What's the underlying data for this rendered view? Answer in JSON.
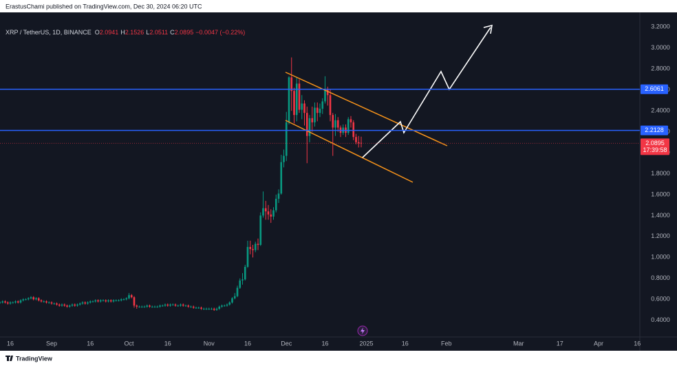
{
  "header": {
    "text": "ErastusChami published on TradingView.com, Dec 30, 2024 06:20 UTC"
  },
  "footer": {
    "text": "TradingView"
  },
  "chart_data": {
    "type": "candlestick",
    "legend": {
      "symbol": "XRP / TetherUS, 1D, BINANCE",
      "labels": [
        "O",
        "H",
        "L",
        "C"
      ],
      "change_label": "−0.0047 (−0.22%)"
    },
    "up_color": "#089981",
    "down_color": "#f23645",
    "x": [
      11,
      12,
      13,
      14,
      15,
      16,
      17,
      18,
      19,
      20,
      21,
      22,
      23,
      24,
      25,
      26,
      27,
      28,
      29,
      30,
      31,
      32,
      33,
      34,
      35,
      36,
      37,
      38,
      39,
      40,
      41,
      42,
      43,
      44,
      45,
      46,
      47,
      48,
      49,
      50,
      51,
      52,
      53,
      54,
      55,
      56,
      57,
      58,
      59,
      60,
      61,
      62,
      63,
      64,
      65,
      66,
      67,
      68,
      69,
      70,
      71,
      72,
      73,
      74,
      75,
      76,
      77,
      78,
      79,
      80,
      81,
      82,
      83,
      84,
      85,
      86,
      87,
      88,
      89,
      90,
      91,
      92,
      93,
      94,
      95,
      96,
      97,
      98,
      99,
      100,
      101,
      102,
      103,
      104,
      105,
      106,
      107,
      108,
      109,
      110,
      111,
      112,
      113,
      114,
      115,
      116,
      117,
      118,
      119,
      120,
      121,
      122,
      123,
      124,
      125,
      126,
      127,
      128,
      129,
      130,
      131,
      132,
      133,
      134,
      135,
      136,
      137,
      138,
      139,
      140,
      141,
      142,
      143,
      144,
      145,
      146,
      147,
      148,
      149,
      150,
      151
    ],
    "open": [
      0.57,
      0.57,
      0.58,
      0.57,
      0.56,
      0.57,
      0.57,
      0.58,
      0.57,
      0.59,
      0.6,
      0.6,
      0.61,
      0.62,
      0.6,
      0.61,
      0.59,
      0.58,
      0.58,
      0.57,
      0.57,
      0.56,
      0.56,
      0.55,
      0.54,
      0.55,
      0.54,
      0.53,
      0.54,
      0.55,
      0.54,
      0.55,
      0.56,
      0.57,
      0.56,
      0.57,
      0.58,
      0.58,
      0.59,
      0.58,
      0.59,
      0.59,
      0.58,
      0.59,
      0.58,
      0.59,
      0.59,
      0.59,
      0.6,
      0.6,
      0.61,
      0.64,
      0.62,
      0.54,
      0.53,
      0.53,
      0.53,
      0.53,
      0.54,
      0.53,
      0.53,
      0.53,
      0.53,
      0.54,
      0.54,
      0.55,
      0.54,
      0.55,
      0.55,
      0.54,
      0.54,
      0.55,
      0.54,
      0.54,
      0.53,
      0.53,
      0.52,
      0.52,
      0.52,
      0.51,
      0.51,
      0.51,
      0.51,
      0.51,
      0.5,
      0.51,
      0.53,
      0.54,
      0.54,
      0.55,
      0.57,
      0.61,
      0.63,
      0.71,
      0.78,
      0.79,
      0.91,
      1.1,
      1.08,
      1.07,
      1.13,
      1.12,
      1.4,
      1.47,
      1.44,
      1.41,
      1.39,
      1.45,
      1.56,
      1.61,
      1.91,
      1.97,
      2.29,
      2.72,
      2.59,
      2.36,
      2.66,
      2.41,
      2.47,
      2.38,
      2.16,
      2.33,
      2.29,
      2.43,
      2.38,
      2.42,
      2.49,
      2.6,
      2.55,
      2.36,
      2.24,
      2.31,
      2.24,
      2.19,
      2.24,
      2.19,
      2.32,
      2.29,
      2.15,
      2.1,
      2.0941
    ],
    "high": [
      0.58,
      0.59,
      0.59,
      0.58,
      0.58,
      0.58,
      0.59,
      0.59,
      0.6,
      0.61,
      0.61,
      0.62,
      0.63,
      0.63,
      0.62,
      0.62,
      0.6,
      0.59,
      0.59,
      0.58,
      0.58,
      0.57,
      0.57,
      0.56,
      0.56,
      0.56,
      0.55,
      0.55,
      0.56,
      0.56,
      0.56,
      0.57,
      0.58,
      0.58,
      0.58,
      0.59,
      0.59,
      0.6,
      0.6,
      0.6,
      0.6,
      0.6,
      0.6,
      0.6,
      0.6,
      0.6,
      0.6,
      0.61,
      0.61,
      0.62,
      0.66,
      0.65,
      0.63,
      0.55,
      0.54,
      0.54,
      0.54,
      0.55,
      0.55,
      0.54,
      0.54,
      0.54,
      0.55,
      0.55,
      0.56,
      0.56,
      0.56,
      0.56,
      0.56,
      0.55,
      0.56,
      0.56,
      0.55,
      0.55,
      0.54,
      0.54,
      0.53,
      0.53,
      0.53,
      0.52,
      0.52,
      0.52,
      0.52,
      0.52,
      0.52,
      0.54,
      0.55,
      0.55,
      0.56,
      0.58,
      0.62,
      0.66,
      0.73,
      0.8,
      0.85,
      0.93,
      1.16,
      1.16,
      1.12,
      1.15,
      1.18,
      1.43,
      1.63,
      1.54,
      1.5,
      1.46,
      1.48,
      1.6,
      1.65,
      1.98,
      2.03,
      2.39,
      2.73,
      2.91,
      2.62,
      2.72,
      2.7,
      2.55,
      2.5,
      2.44,
      2.36,
      2.44,
      2.48,
      2.48,
      2.47,
      2.52,
      2.73,
      2.63,
      2.61,
      2.38,
      2.37,
      2.34,
      2.26,
      2.27,
      2.27,
      2.34,
      2.35,
      2.31,
      2.18,
      2.16,
      2.1526
    ],
    "low": [
      0.56,
      0.56,
      0.56,
      0.55,
      0.55,
      0.56,
      0.56,
      0.56,
      0.56,
      0.58,
      0.59,
      0.59,
      0.6,
      0.59,
      0.59,
      0.58,
      0.57,
      0.57,
      0.56,
      0.56,
      0.55,
      0.55,
      0.54,
      0.53,
      0.53,
      0.53,
      0.52,
      0.52,
      0.53,
      0.53,
      0.53,
      0.54,
      0.55,
      0.55,
      0.55,
      0.56,
      0.57,
      0.57,
      0.57,
      0.57,
      0.58,
      0.57,
      0.57,
      0.57,
      0.57,
      0.58,
      0.58,
      0.58,
      0.59,
      0.59,
      0.6,
      0.61,
      0.52,
      0.51,
      0.52,
      0.52,
      0.52,
      0.52,
      0.52,
      0.52,
      0.52,
      0.52,
      0.52,
      0.53,
      0.53,
      0.53,
      0.53,
      0.54,
      0.53,
      0.53,
      0.53,
      0.53,
      0.53,
      0.52,
      0.52,
      0.51,
      0.51,
      0.51,
      0.5,
      0.5,
      0.5,
      0.5,
      0.5,
      0.49,
      0.49,
      0.5,
      0.52,
      0.53,
      0.53,
      0.54,
      0.56,
      0.6,
      0.62,
      0.7,
      0.74,
      0.78,
      0.9,
      1.03,
      1.0,
      1.05,
      1.07,
      1.11,
      1.38,
      1.36,
      1.36,
      1.33,
      1.36,
      1.43,
      1.52,
      1.6,
      1.86,
      1.92,
      2.27,
      2.4,
      2.28,
      2.3,
      2.38,
      2.32,
      2.26,
      1.9,
      2.1,
      2.2,
      2.25,
      2.3,
      2.34,
      2.37,
      2.47,
      2.45,
      2.3,
      1.97,
      2.16,
      2.2,
      2.15,
      2.17,
      2.15,
      2.17,
      2.24,
      2.12,
      2.08,
      2.05,
      2.0511
    ],
    "close": [
      0.57,
      0.58,
      0.57,
      0.56,
      0.57,
      0.57,
      0.58,
      0.57,
      0.59,
      0.6,
      0.6,
      0.61,
      0.62,
      0.6,
      0.61,
      0.59,
      0.58,
      0.58,
      0.57,
      0.57,
      0.56,
      0.56,
      0.55,
      0.54,
      0.55,
      0.54,
      0.53,
      0.54,
      0.55,
      0.54,
      0.55,
      0.56,
      0.57,
      0.56,
      0.57,
      0.58,
      0.58,
      0.59,
      0.58,
      0.59,
      0.59,
      0.58,
      0.59,
      0.58,
      0.59,
      0.59,
      0.59,
      0.6,
      0.6,
      0.61,
      0.64,
      0.62,
      0.54,
      0.53,
      0.53,
      0.53,
      0.53,
      0.54,
      0.53,
      0.53,
      0.53,
      0.53,
      0.54,
      0.54,
      0.55,
      0.54,
      0.55,
      0.55,
      0.54,
      0.54,
      0.55,
      0.54,
      0.54,
      0.53,
      0.53,
      0.52,
      0.52,
      0.52,
      0.51,
      0.51,
      0.51,
      0.51,
      0.51,
      0.5,
      0.51,
      0.53,
      0.54,
      0.54,
      0.55,
      0.57,
      0.61,
      0.63,
      0.71,
      0.78,
      0.79,
      0.91,
      1.1,
      1.08,
      1.07,
      1.13,
      1.12,
      1.4,
      1.47,
      1.44,
      1.41,
      1.39,
      1.45,
      1.56,
      1.61,
      1.91,
      1.97,
      2.29,
      2.72,
      2.59,
      2.36,
      2.66,
      2.41,
      2.47,
      2.38,
      2.16,
      2.33,
      2.29,
      2.43,
      2.38,
      2.42,
      2.49,
      2.6,
      2.55,
      2.36,
      2.24,
      2.31,
      2.24,
      2.19,
      2.24,
      2.19,
      2.32,
      2.29,
      2.15,
      2.1,
      2.09,
      2.0895
    ],
    "levels": [
      {
        "value": 2.6061,
        "label": "2.6061",
        "color": "#2962ff"
      },
      {
        "value": 2.2128,
        "label": "2.2128",
        "color": "#2962ff"
      }
    ],
    "last_price_label": "2.0895",
    "countdown": "17:39:58",
    "xlim": [
      11,
      259
    ],
    "xticks": [
      {
        "value": 15,
        "label": "16"
      },
      {
        "value": 31,
        "label": "Sep"
      },
      {
        "value": 46,
        "label": "16"
      },
      {
        "value": 61,
        "label": "Oct"
      },
      {
        "value": 76,
        "label": "16"
      },
      {
        "value": 92,
        "label": "Nov"
      },
      {
        "value": 107,
        "label": "16"
      },
      {
        "value": 122,
        "label": "Dec"
      },
      {
        "value": 137,
        "label": "16"
      },
      {
        "value": 153,
        "label": "2025"
      },
      {
        "value": 168,
        "label": "16"
      },
      {
        "value": 184,
        "label": "Feb"
      },
      {
        "value": 212,
        "label": "Mar"
      },
      {
        "value": 228,
        "label": "17"
      },
      {
        "value": 243,
        "label": "Apr"
      },
      {
        "value": 258,
        "label": "16"
      }
    ],
    "ylim": [
      0.26,
      3.34
    ],
    "yticks": [
      {
        "value": 0.4,
        "label": "0.4000"
      },
      {
        "value": 0.6,
        "label": "0.6000"
      },
      {
        "value": 0.8,
        "label": "0.8000"
      },
      {
        "value": 1.0,
        "label": "1.0000"
      },
      {
        "value": 1.2,
        "label": "1.2000"
      },
      {
        "value": 1.4,
        "label": "1.4000"
      },
      {
        "value": 1.6,
        "label": "1.6000"
      },
      {
        "value": 1.8,
        "label": "1.8000"
      },
      {
        "value": 2.0,
        "label": "2.0000"
      },
      {
        "value": 2.2,
        "label": "2.2000"
      },
      {
        "value": 2.4,
        "label": "2.4000"
      },
      {
        "value": 2.6,
        "label": "2.6000"
      },
      {
        "value": 2.8,
        "label": "2.8000"
      },
      {
        "value": 3.0,
        "label": "3.0000"
      },
      {
        "value": 3.2,
        "label": "3.2000"
      }
    ]
  }
}
